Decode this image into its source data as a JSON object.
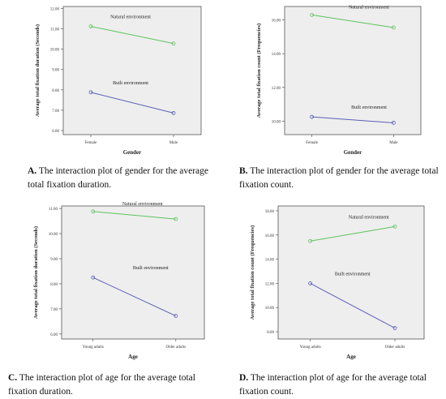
{
  "panels": [
    {
      "id": "A",
      "caption_letter": "A.",
      "caption_text": "The interaction plot of gender for the average total fixation duration.",
      "chart_data": {
        "type": "line",
        "categories": [
          "Female",
          "Male"
        ],
        "xlabel": "Gender",
        "ylabel": "Average total fixation duration (Seconds)",
        "ylim": [
          5.8,
          12.1
        ],
        "yticks": [
          "12.00",
          "11.00",
          "10.00",
          "9.00",
          "8.00",
          "7.00",
          "6.00"
        ],
        "ytick_values": [
          12,
          11,
          10,
          9,
          8,
          7,
          6
        ],
        "grid": false,
        "series": [
          {
            "name": "Natural environment",
            "values": [
              11.12,
              10.28
            ],
            "color": "#5cc45c"
          },
          {
            "name": "Built environment",
            "values": [
              7.88,
              6.86
            ],
            "color": "#5b5fb5"
          }
        ]
      }
    },
    {
      "id": "B",
      "caption_letter": "B.",
      "caption_text": "The interaction plot of gender for the average total fixation count.",
      "chart_data": {
        "type": "line",
        "categories": [
          "Female",
          "Male"
        ],
        "xlabel": "Gender",
        "ylabel": "Average total fixation count (Frequencies)",
        "ylim": [
          9.2,
          16.8
        ],
        "yticks": [
          "16.00",
          "14.00",
          "12.00",
          "10.00"
        ],
        "ytick_values": [
          16,
          14,
          12,
          10
        ],
        "grid": false,
        "series": [
          {
            "name": "Natural environment",
            "values": [
              16.3,
              15.55
            ],
            "color": "#5cc45c"
          },
          {
            "name": "Built environment",
            "values": [
              10.25,
              9.9
            ],
            "color": "#5b5fb5"
          }
        ]
      }
    },
    {
      "id": "C",
      "caption_letter": "C.",
      "caption_text": "The interaction plot of age for the average total fixation duration.",
      "chart_data": {
        "type": "line",
        "categories": [
          "Young adults",
          "Older adults"
        ],
        "xlabel": "Age",
        "ylabel": "Average total fixation duration (Seconds)",
        "ylim": [
          5.8,
          11.1
        ],
        "yticks": [
          "11.00",
          "10.00",
          "9.00",
          "8.00",
          "7.00",
          "6.00"
        ],
        "ytick_values": [
          11,
          10,
          9,
          8,
          7,
          6
        ],
        "grid": false,
        "series": [
          {
            "name": "Natural environment",
            "values": [
              10.88,
              10.58
            ],
            "color": "#5cc45c"
          },
          {
            "name": "Built environment",
            "values": [
              8.25,
              6.72
            ],
            "color": "#5b5fb5"
          }
        ]
      }
    },
    {
      "id": "D",
      "caption_letter": "D.",
      "caption_text": "The interaction plot of age for the average total fixation count.",
      "chart_data": {
        "type": "line",
        "categories": [
          "Young adults",
          "Older adults"
        ],
        "xlabel": "Age",
        "ylabel": "Average total fixation count (Frequencies)",
        "ylim": [
          7.4,
          18.4
        ],
        "yticks": [
          "18.00",
          "16.00",
          "14.00",
          "12.00",
          "10.00",
          "8.00"
        ],
        "ytick_values": [
          18,
          16,
          14,
          12,
          10,
          8
        ],
        "grid": false,
        "series": [
          {
            "name": "Natural environment",
            "values": [
              15.5,
              16.7
            ],
            "color": "#5cc45c"
          },
          {
            "name": "Built environment",
            "values": [
              12.0,
              8.3
            ],
            "color": "#5b5fb5"
          }
        ]
      }
    }
  ]
}
